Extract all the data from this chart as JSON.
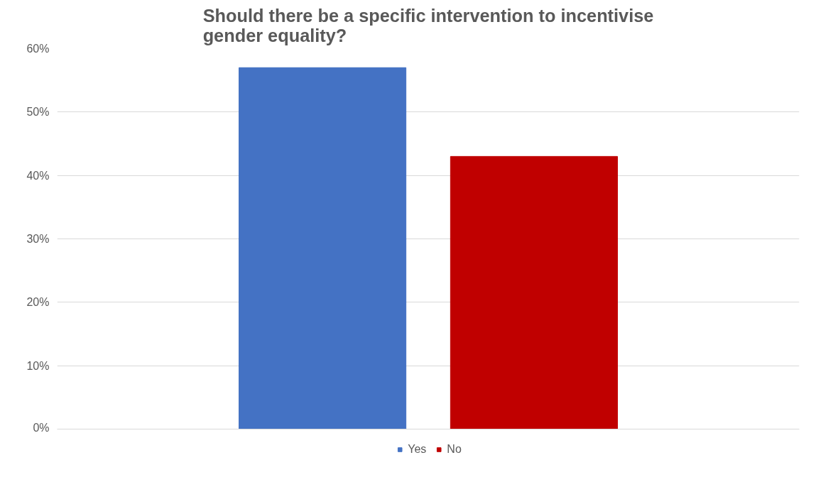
{
  "chart_data": {
    "type": "bar",
    "title": "Should there be a specific intervention to incentivise gender equality?",
    "categories": [
      null
    ],
    "series": [
      {
        "name": "Yes",
        "color": "#4472c4",
        "values": [
          57
        ]
      },
      {
        "name": "No",
        "color": "#c00000",
        "values": [
          43
        ]
      }
    ],
    "ylim": [
      0,
      60
    ],
    "yticks": [
      {
        "value": 0,
        "label": "0%"
      },
      {
        "value": 10,
        "label": "10%"
      },
      {
        "value": 20,
        "label": "20%"
      },
      {
        "value": 30,
        "label": "30%"
      },
      {
        "value": 40,
        "label": "40%"
      },
      {
        "value": 50,
        "label": "50%"
      },
      {
        "value": 60,
        "label": "60%"
      }
    ],
    "grid": "y",
    "legend": "bottom",
    "tick_labels": "y"
  }
}
